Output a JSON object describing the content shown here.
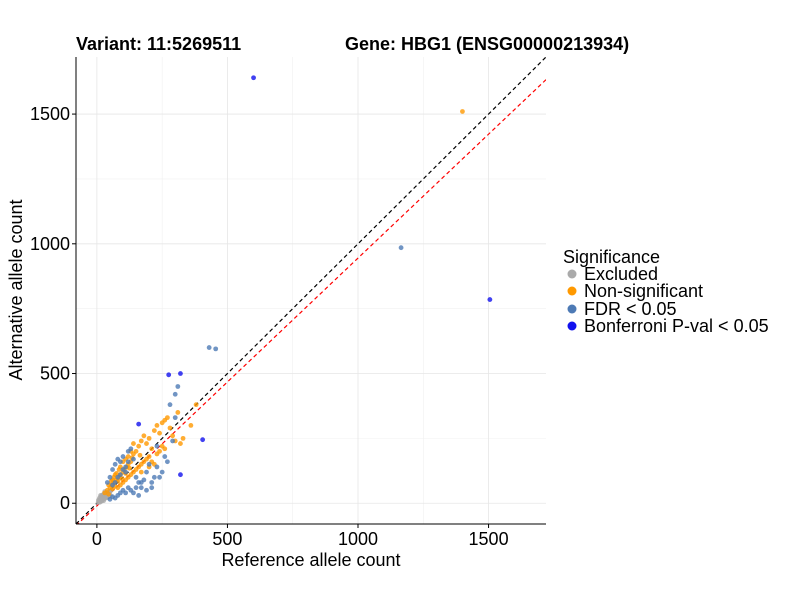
{
  "chart_data": {
    "type": "scatter",
    "title_left": "Variant: 11:5269511",
    "title_right": "Gene: HBG1 (ENSG00000213934)",
    "xlabel": "Reference allele count",
    "ylabel": "Alternative allele count",
    "xlim": [
      -80,
      1720
    ],
    "ylim": [
      -80,
      1720
    ],
    "x_ticks": [
      0,
      500,
      1000,
      1500
    ],
    "y_ticks": [
      0,
      500,
      1000,
      1500
    ],
    "grid": true,
    "legend_position": "right",
    "reference_lines": [
      {
        "name": "identity",
        "slope": 1.0,
        "intercept": 0,
        "color": "#000000",
        "dash": true
      },
      {
        "name": "fitted",
        "slope": 0.955,
        "intercept": -10,
        "color": "#ff0000",
        "dash": true
      }
    ],
    "legend": {
      "title": "Significance",
      "items": [
        {
          "label": "Excluded",
          "color": "#aaaaaa"
        },
        {
          "label": "Non-significant",
          "color": "#ff9900"
        },
        {
          "label": "FDR < 0.05",
          "color": "#4d7ab5"
        },
        {
          "label": "Bonferroni P-val < 0.05",
          "color": "#1111ee"
        }
      ]
    },
    "series": [
      {
        "name": "Excluded",
        "color": "#aaaaaa",
        "points": [
          [
            5,
            3
          ],
          [
            8,
            10
          ],
          [
            10,
            6
          ],
          [
            12,
            15
          ],
          [
            15,
            9
          ],
          [
            18,
            20
          ],
          [
            20,
            12
          ],
          [
            22,
            25
          ],
          [
            25,
            16
          ],
          [
            28,
            30
          ],
          [
            30,
            18
          ],
          [
            32,
            35
          ],
          [
            35,
            22
          ],
          [
            38,
            28
          ],
          [
            40,
            40
          ],
          [
            42,
            32
          ],
          [
            45,
            26
          ],
          [
            48,
            38
          ],
          [
            50,
            45
          ],
          [
            52,
            30
          ],
          [
            55,
            50
          ],
          [
            15,
            25
          ],
          [
            20,
            30
          ],
          [
            25,
            35
          ],
          [
            30,
            45
          ],
          [
            35,
            40
          ],
          [
            10,
            20
          ],
          [
            18,
            8
          ],
          [
            22,
            14
          ],
          [
            28,
            22
          ],
          [
            33,
            26
          ],
          [
            36,
            30
          ],
          [
            40,
            22
          ],
          [
            44,
            36
          ],
          [
            12,
            4
          ],
          [
            6,
            12
          ],
          [
            26,
            10
          ],
          [
            14,
            30
          ],
          [
            30,
            25
          ],
          [
            46,
            44
          ]
        ]
      },
      {
        "name": "Non-significant",
        "color": "#ff9900",
        "points": [
          [
            30,
            40
          ],
          [
            40,
            50
          ],
          [
            45,
            35
          ],
          [
            50,
            60
          ],
          [
            55,
            70
          ],
          [
            60,
            55
          ],
          [
            65,
            80
          ],
          [
            70,
            65
          ],
          [
            75,
            90
          ],
          [
            80,
            85
          ],
          [
            85,
            100
          ],
          [
            90,
            110
          ],
          [
            95,
            95
          ],
          [
            100,
            120
          ],
          [
            105,
            130
          ],
          [
            110,
            115
          ],
          [
            115,
            140
          ],
          [
            120,
            150
          ],
          [
            125,
            135
          ],
          [
            130,
            160
          ],
          [
            135,
            175
          ],
          [
            140,
            190
          ],
          [
            150,
            200
          ],
          [
            160,
            220
          ],
          [
            165,
            185
          ],
          [
            170,
            240
          ],
          [
            180,
            260
          ],
          [
            190,
            230
          ],
          [
            200,
            250
          ],
          [
            210,
            210
          ],
          [
            220,
            280
          ],
          [
            230,
            300
          ],
          [
            240,
            270
          ],
          [
            250,
            310
          ],
          [
            260,
            320
          ],
          [
            270,
            330
          ],
          [
            280,
            290
          ],
          [
            290,
            260
          ],
          [
            300,
            240
          ],
          [
            310,
            350
          ],
          [
            320,
            230
          ],
          [
            330,
            250
          ],
          [
            380,
            380
          ],
          [
            360,
            300
          ],
          [
            60,
            90
          ],
          [
            70,
            110
          ],
          [
            80,
            60
          ],
          [
            90,
            70
          ],
          [
            100,
            80
          ],
          [
            110,
            90
          ],
          [
            120,
            100
          ],
          [
            130,
            110
          ],
          [
            140,
            120
          ],
          [
            150,
            130
          ],
          [
            160,
            140
          ],
          [
            170,
            150
          ],
          [
            180,
            160
          ],
          [
            190,
            170
          ],
          [
            200,
            180
          ],
          [
            140,
            230
          ],
          [
            130,
            200
          ],
          [
            120,
            180
          ],
          [
            110,
            170
          ],
          [
            100,
            160
          ],
          [
            90,
            140
          ],
          [
            85,
            130
          ],
          [
            75,
            115
          ],
          [
            65,
            100
          ],
          [
            55,
            85
          ],
          [
            45,
            70
          ],
          [
            210,
            160
          ],
          [
            230,
            190
          ],
          [
            250,
            220
          ],
          [
            170,
            120
          ],
          [
            200,
            140
          ],
          [
            220,
            150
          ],
          [
            240,
            200
          ],
          [
            260,
            210
          ],
          [
            1400,
            1510
          ]
        ]
      },
      {
        "name": "FDR < 0.05",
        "color": "#4d7ab5",
        "points": [
          [
            40,
            80
          ],
          [
            50,
            100
          ],
          [
            60,
            130
          ],
          [
            70,
            150
          ],
          [
            80,
            170
          ],
          [
            90,
            160
          ],
          [
            100,
            180
          ],
          [
            110,
            120
          ],
          [
            120,
            200
          ],
          [
            130,
            210
          ],
          [
            140,
            170
          ],
          [
            150,
            100
          ],
          [
            160,
            80
          ],
          [
            170,
            60
          ],
          [
            180,
            90
          ],
          [
            190,
            120
          ],
          [
            200,
            150
          ],
          [
            210,
            60
          ],
          [
            220,
            100
          ],
          [
            230,
            140
          ],
          [
            250,
            120
          ],
          [
            270,
            160
          ],
          [
            290,
            240
          ],
          [
            300,
            330
          ],
          [
            280,
            380
          ],
          [
            300,
            420
          ],
          [
            310,
            450
          ],
          [
            240,
            100
          ],
          [
            120,
            60
          ],
          [
            100,
            50
          ],
          [
            90,
            40
          ],
          [
            80,
            30
          ],
          [
            70,
            20
          ],
          [
            60,
            25
          ],
          [
            50,
            15
          ],
          [
            140,
            40
          ],
          [
            160,
            30
          ],
          [
            110,
            40
          ],
          [
            130,
            50
          ],
          [
            150,
            60
          ],
          [
            170,
            80
          ],
          [
            60,
            70
          ],
          [
            70,
            80
          ],
          [
            80,
            100
          ],
          [
            90,
            110
          ],
          [
            100,
            130
          ],
          [
            110,
            140
          ],
          [
            120,
            160
          ],
          [
            190,
            50
          ],
          [
            210,
            80
          ],
          [
            430,
            600
          ],
          [
            455,
            595
          ],
          [
            1165,
            985
          ],
          [
            230,
            220
          ],
          [
            260,
            180
          ]
        ]
      },
      {
        "name": "Bonferroni P-val < 0.05",
        "color": "#1111ee",
        "points": [
          [
            600,
            1640
          ],
          [
            1505,
            785
          ],
          [
            275,
            495
          ],
          [
            320,
            500
          ],
          [
            405,
            245
          ],
          [
            320,
            110
          ],
          [
            160,
            305
          ]
        ]
      }
    ]
  }
}
